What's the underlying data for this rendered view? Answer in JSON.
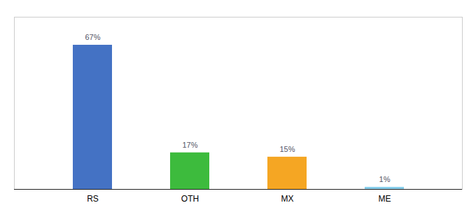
{
  "chart_data": {
    "type": "bar",
    "categories": [
      "RS",
      "OTH",
      "MX",
      "ME"
    ],
    "values": [
      67,
      17,
      15,
      1
    ],
    "colors": [
      "#4472c4",
      "#3dbb3d",
      "#f5a623",
      "#87ceeb"
    ],
    "value_labels": [
      "67%",
      "17%",
      "15%",
      "1%"
    ],
    "data_labels": true,
    "ylim": [
      0,
      80
    ],
    "tick_labels": "x",
    "grid": false
  }
}
